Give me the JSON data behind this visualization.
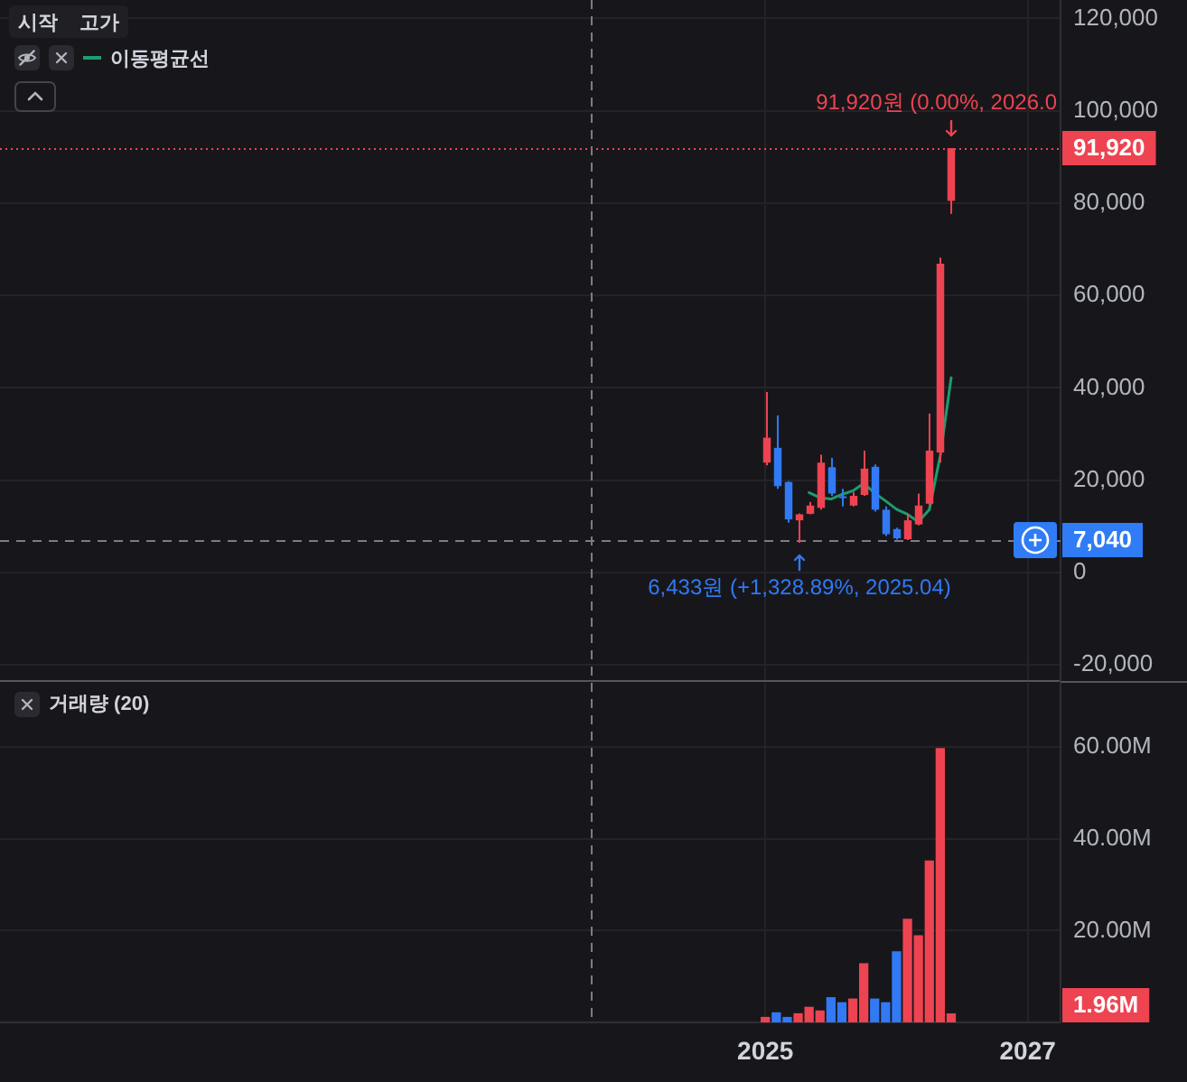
{
  "chart_data": [
    {
      "type": "candlestick",
      "x": [
        "2025-01",
        "2025-02",
        "2025-03",
        "2025-04",
        "2025-05",
        "2025-06",
        "2025-07",
        "2025-08",
        "2025-09",
        "2025-10",
        "2025-11",
        "2025-12",
        "2026-01",
        "2026-02",
        "2026-03",
        "2026-04",
        "2026-05",
        "2026-06"
      ],
      "ohlc": [
        [
          23800,
          39100,
          23200,
          29200
        ],
        [
          27000,
          34000,
          18100,
          18700
        ],
        [
          19600,
          19800,
          10800,
          11500
        ],
        [
          11300,
          12800,
          6433,
          12600
        ],
        [
          12700,
          15300,
          12600,
          14500
        ],
        [
          14000,
          25500,
          13600,
          23800
        ],
        [
          22800,
          24800,
          16600,
          17100
        ],
        [
          16500,
          18100,
          14300,
          16400
        ],
        [
          14500,
          17400,
          14300,
          16600
        ],
        [
          16800,
          26400,
          16600,
          22500
        ],
        [
          22900,
          23400,
          13200,
          13600
        ],
        [
          13600,
          14300,
          7900,
          8300
        ],
        [
          9400,
          9700,
          7100,
          7400
        ],
        [
          7200,
          12600,
          7000,
          11300
        ],
        [
          10400,
          17100,
          10200,
          14500
        ],
        [
          14900,
          34400,
          14600,
          26400
        ],
        [
          26000,
          68200,
          23800,
          66900
        ],
        [
          80500,
          91920,
          77700,
          91920
        ]
      ],
      "colors": [
        "#ee4351",
        "#3179f5",
        "#3179f5",
        "#ee4351",
        "#ee4351",
        "#ee4351",
        "#3179f5",
        "#3179f5",
        "#ee4351",
        "#ee4351",
        "#3179f5",
        "#3179f5",
        "#3179f5",
        "#ee4351",
        "#ee4351",
        "#ee4351",
        "#ee4351",
        "#ee4351"
      ],
      "series": [
        {
          "type": "line",
          "name": "이동평균선",
          "color": "#1f9b6e",
          "x": [
            "2025-05",
            "2025-06",
            "2025-07",
            "2025-08",
            "2025-09",
            "2025-10",
            "2025-11",
            "2025-12",
            "2026-01",
            "2026-02",
            "2026-03",
            "2026-04",
            "2026-05",
            "2026-06"
          ],
          "values": [
            17300,
            16200,
            15900,
            16900,
            17700,
            19300,
            17200,
            15500,
            13700,
            12600,
            11000,
            13600,
            25300,
            42200
          ]
        }
      ],
      "xlim": [
        "2019-03",
        "2027-04"
      ],
      "xticks": [
        "2025",
        "2027"
      ],
      "ylim": [
        -23500,
        124000
      ],
      "yticks": [
        {
          "value": -20000,
          "label": "-20,000"
        },
        0,
        {
          "value": 20000,
          "label": "20,000"
        },
        {
          "value": 40000,
          "label": "40,000"
        },
        {
          "value": 60000,
          "label": "60,000"
        },
        {
          "value": 80000,
          "label": "80,000"
        },
        {
          "value": 100000,
          "label": "100,000"
        },
        {
          "value": 120000,
          "label": "120,000"
        }
      ],
      "grid": true,
      "legend": "top left",
      "tick_labels": "y",
      "ref_lines": [
        {
          "axis": "y",
          "value": 91920,
          "label": "91,920",
          "color": "#ee4351",
          "line_style": "dotted"
        },
        {
          "axis": "y",
          "value": 7040,
          "label": "7,040",
          "line_style": "dashed"
        },
        {
          "axis": "x",
          "value": "2023-09",
          "line_style": "dashed"
        }
      ],
      "annotations": [
        "시작",
        "고가",
        {
          "text": "91,920원 (0.00%, 2026.0",
          "x": "2026-06",
          "y": 91920
        },
        {
          "text": "6,433원 (+1,328.89%, 2025.04)",
          "x": "2025-04",
          "y": 6433
        }
      ]
    },
    {
      "type": "bar",
      "title": "거래량 (20)",
      "x": [
        "2025-01",
        "2025-02",
        "2025-03",
        "2025-04",
        "2025-05",
        "2025-06",
        "2025-07",
        "2025-08",
        "2025-09",
        "2025-10",
        "2025-11",
        "2025-12",
        "2026-01",
        "2026-02",
        "2026-03",
        "2026-04",
        "2026-05",
        "2026-06"
      ],
      "values": [
        1.2,
        2.2,
        1.2,
        2.0,
        3.4,
        2.6,
        5.5,
        4.4,
        5.2,
        12.9,
        5.2,
        4.4,
        15.5,
        22.6,
        19.0,
        35.3,
        59.8,
        1.96
      ],
      "colors": [
        "#ee4351",
        "#3179f5",
        "#3179f5",
        "#ee4351",
        "#ee4351",
        "#ee4351",
        "#3179f5",
        "#3179f5",
        "#ee4351",
        "#ee4351",
        "#3179f5",
        "#3179f5",
        "#3179f5",
        "#ee4351",
        "#ee4351",
        "#ee4351",
        "#ee4351",
        "#ee4351"
      ],
      "xlim": [
        "2019-03",
        "2027-04"
      ],
      "xticks": [
        "2025",
        "2027"
      ],
      "ylim": [
        0,
        74
      ],
      "yticks": [
        {
          "value": 20,
          "label": "20.00M"
        },
        {
          "value": 40,
          "label": "40.00M"
        },
        {
          "value": 60,
          "label": "60.00M"
        }
      ],
      "grid": true,
      "ref_lines": [
        {
          "axis": "x",
          "value": "2023-09",
          "line_style": "dashed"
        }
      ],
      "annotations": [
        "1.96M"
      ]
    }
  ]
}
